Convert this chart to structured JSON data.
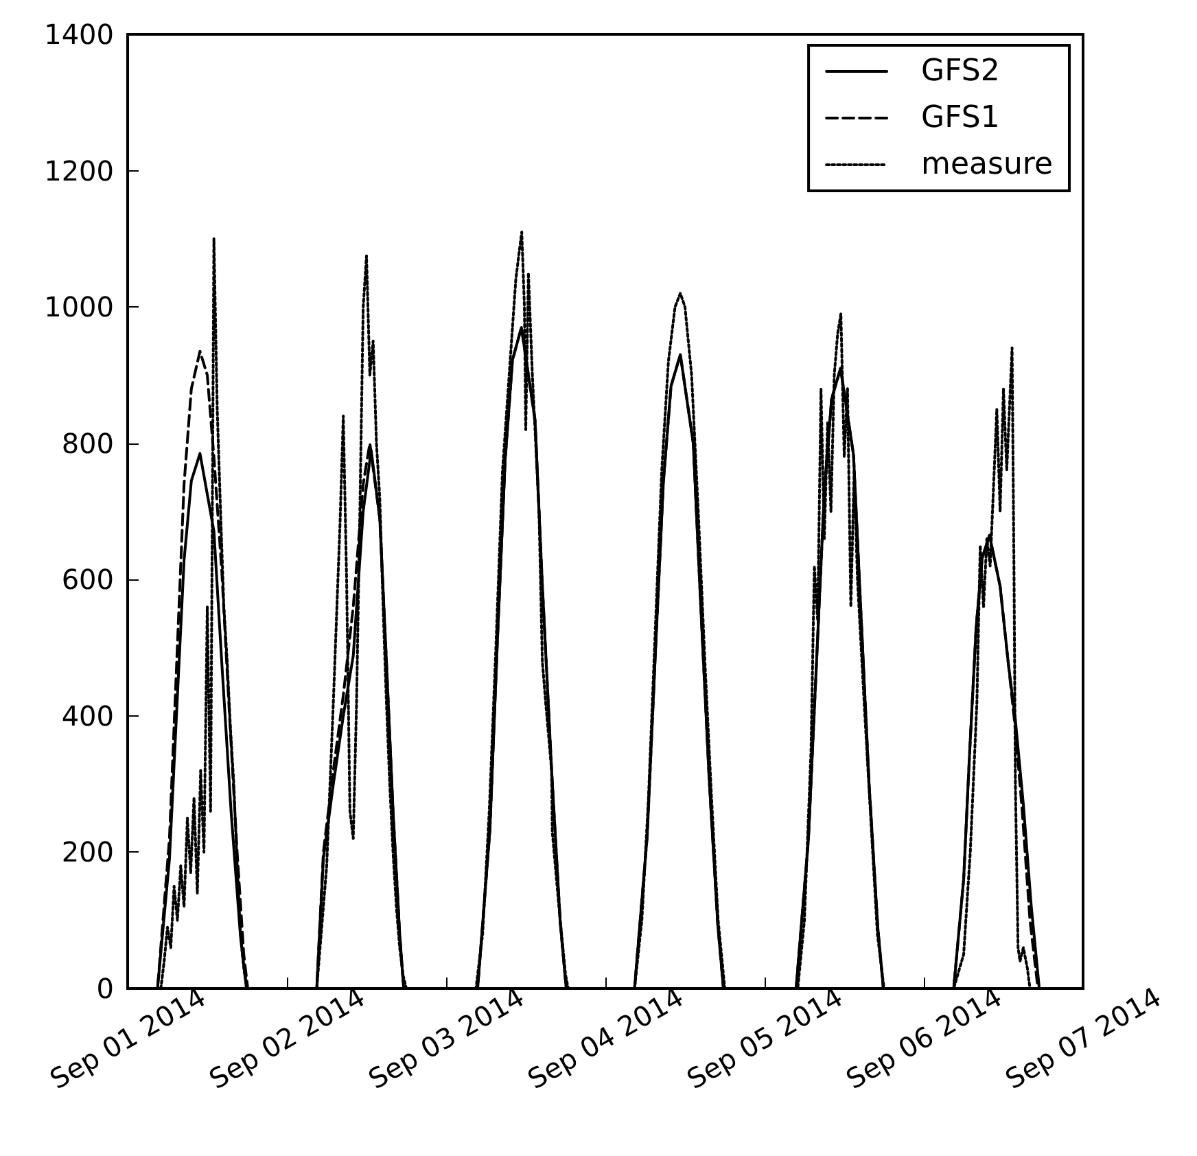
{
  "chart_data": {
    "type": "line",
    "xlim": [
      "2014-09-01",
      "2014-09-07"
    ],
    "xticks": [
      {
        "value": "2014-09-01",
        "label": "Sep 01 2014"
      },
      {
        "value": "2014-09-02",
        "label": "Sep 02 2014"
      },
      {
        "value": "2014-09-03",
        "label": "Sep 03 2014"
      },
      {
        "value": "2014-09-04",
        "label": "Sep 04 2014"
      },
      {
        "value": "2014-09-05",
        "label": "Sep 05 2014"
      },
      {
        "value": "2014-09-06",
        "label": "Sep 06 2014"
      },
      {
        "value": "2014-09-07",
        "label": "Sep 07 2014"
      }
    ],
    "ylim": [
      0,
      1400
    ],
    "yticks": [
      0,
      200,
      400,
      600,
      800,
      1000,
      1200,
      1400
    ],
    "grid": false,
    "legend": "top right",
    "marker": "none",
    "series": [
      {
        "name": "GFS2",
        "color": "#000000",
        "line_style": "solid",
        "x": [
          "2014-09-01T00:00",
          "2014-09-01T04:30",
          "2014-09-01T06:18",
          "2014-09-01T07:24",
          "2014-09-01T08:30",
          "2014-09-01T09:36",
          "2014-09-01T10:54",
          "2014-09-01T13:00",
          "2014-09-01T14:12",
          "2014-09-01T15:36",
          "2014-09-01T17:00",
          "2014-09-01T17:54",
          "2014-09-02T04:30",
          "2014-09-02T05:30",
          "2014-09-02T07:00",
          "2014-09-02T08:30",
          "2014-09-02T10:00",
          "2014-09-02T11:30",
          "2014-09-02T12:42",
          "2014-09-02T14:00",
          "2014-09-02T15:00",
          "2014-09-02T16:00",
          "2014-09-02T17:00",
          "2014-09-02T17:36",
          "2014-09-03T04:45",
          "2014-09-03T06:36",
          "2014-09-03T07:42",
          "2014-09-03T08:54",
          "2014-09-03T10:00",
          "2014-09-03T11:21",
          "2014-09-03T13:24",
          "2014-09-03T14:30",
          "2014-09-03T15:54",
          "2014-09-03T17:12",
          "2014-09-03T18:06",
          "2014-09-04T04:24",
          "2014-09-04T06:18",
          "2014-09-04T07:30",
          "2014-09-04T08:45",
          "2014-09-04T09:54",
          "2014-09-04T11:18",
          "2014-09-04T13:15",
          "2014-09-04T14:21",
          "2014-09-04T15:39",
          "2014-09-04T16:57",
          "2014-09-04T17:48",
          "2014-09-05T04:45",
          "2014-09-05T06:36",
          "2014-09-05T07:48",
          "2014-09-05T09:00",
          "2014-09-05T10:06",
          "2014-09-05T11:27",
          "2014-09-05T13:24",
          "2014-09-05T14:30",
          "2014-09-05T15:45",
          "2014-09-05T17:03",
          "2014-09-05T17:54",
          "2014-09-06T04:30",
          "2014-09-06T06:00",
          "2014-09-06T06:54",
          "2014-09-06T07:54",
          "2014-09-06T08:48",
          "2014-09-06T09:54",
          "2014-09-06T11:30",
          "2014-09-06T12:42",
          "2014-09-06T13:48",
          "2014-09-06T15:00",
          "2014-09-06T16:12",
          "2014-09-06T17:24",
          "2014-09-07T00:00"
        ],
        "values": [
          0,
          0,
          190,
          409,
          628,
          745,
          785,
          671,
          476,
          258,
          77,
          0,
          0,
          191,
          300,
          400,
          488,
          700,
          790,
          690,
          480,
          260,
          80,
          0,
          0,
          233,
          504,
          776,
          922,
          970,
          834,
          592,
          320,
          97,
          0,
          0,
          223,
          484,
          744,
          884,
          930,
          800,
          567,
          307,
          93,
          0,
          0,
          218,
          473,
          728,
          865,
          910,
          783,
          555,
          300,
          91,
          0,
          0,
          160,
          346,
          532,
          632,
          665,
          590,
          480,
          394,
          270,
          120,
          0,
          0
        ]
      },
      {
        "name": "GFS1",
        "color": "#000000",
        "line_style": "dashed",
        "x": [
          "2014-09-01T00:00",
          "2014-09-01T04:30",
          "2014-09-01T06:18",
          "2014-09-01T07:24",
          "2014-09-01T08:30",
          "2014-09-01T09:36",
          "2014-09-01T10:54",
          "2014-09-01T12:00",
          "2014-09-01T13:00",
          "2014-09-01T14:12",
          "2014-09-01T15:18",
          "2014-09-01T16:30",
          "2014-09-01T17:30",
          "2014-09-01T18:06",
          "2014-09-02T04:30",
          "2014-09-02T05:30",
          "2014-09-02T07:00",
          "2014-09-02T08:30",
          "2014-09-02T10:00",
          "2014-09-02T11:30",
          "2014-09-02T12:30",
          "2014-09-02T14:00",
          "2014-09-02T15:00",
          "2014-09-02T16:00",
          "2014-09-02T17:00",
          "2014-09-02T17:36",
          "2014-09-03T04:45",
          "2014-09-03T06:36",
          "2014-09-03T07:42",
          "2014-09-03T08:54",
          "2014-09-03T10:00",
          "2014-09-03T11:21",
          "2014-09-03T13:24",
          "2014-09-03T14:30",
          "2014-09-03T15:54",
          "2014-09-03T17:12",
          "2014-09-03T18:06",
          "2014-09-04T04:24",
          "2014-09-04T06:18",
          "2014-09-04T07:30",
          "2014-09-04T08:45",
          "2014-09-04T09:54",
          "2014-09-04T11:18",
          "2014-09-04T13:15",
          "2014-09-04T14:21",
          "2014-09-04T15:39",
          "2014-09-04T16:57",
          "2014-09-04T17:48",
          "2014-09-05T04:45",
          "2014-09-05T06:36",
          "2014-09-05T07:48",
          "2014-09-05T09:00",
          "2014-09-05T10:06",
          "2014-09-05T11:27",
          "2014-09-05T13:24",
          "2014-09-05T14:30",
          "2014-09-05T15:45",
          "2014-09-05T17:03",
          "2014-09-05T17:54",
          "2014-09-06T04:30",
          "2014-09-06T06:00",
          "2014-09-06T06:54",
          "2014-09-06T07:54",
          "2014-09-06T08:48",
          "2014-09-06T09:54",
          "2014-09-06T11:30",
          "2014-09-06T12:42",
          "2014-09-06T13:48",
          "2014-09-06T14:48",
          "2014-09-06T16:00",
          "2014-09-06T17:12",
          "2014-09-07T00:00"
        ],
        "values": [
          0,
          0,
          220,
          480,
          740,
          880,
          935,
          900,
          780,
          610,
          410,
          200,
          50,
          0,
          0,
          200,
          320,
          430,
          560,
          740,
          800,
          690,
          480,
          260,
          80,
          0,
          0,
          233,
          504,
          776,
          922,
          970,
          834,
          592,
          320,
          97,
          0,
          0,
          223,
          484,
          744,
          884,
          930,
          800,
          567,
          307,
          93,
          0,
          0,
          218,
          473,
          728,
          865,
          910,
          783,
          555,
          300,
          91,
          0,
          0,
          160,
          346,
          532,
          632,
          665,
          590,
          480,
          380,
          264,
          100,
          0,
          0
        ]
      },
      {
        "name": "measure",
        "color": "#000000",
        "line_style": "dotted",
        "x": [
          "2014-09-01T00:00",
          "2014-09-01T05:00",
          "2014-09-01T05:30",
          "2014-09-01T06:00",
          "2014-09-01T06:30",
          "2014-09-01T07:00",
          "2014-09-01T07:30",
          "2014-09-01T08:00",
          "2014-09-01T08:30",
          "2014-09-01T09:00",
          "2014-09-01T09:30",
          "2014-09-01T10:00",
          "2014-09-01T10:30",
          "2014-09-01T11:00",
          "2014-09-01T11:30",
          "2014-09-01T12:00",
          "2014-09-01T12:30",
          "2014-09-01T13:00",
          "2014-09-01T13:30",
          "2014-09-01T14:00",
          "2014-09-01T14:30",
          "2014-09-01T15:00",
          "2014-09-01T15:30",
          "2014-09-01T16:00",
          "2014-09-01T16:30",
          "2014-09-01T17:00",
          "2014-09-01T17:30",
          "2014-09-01T18:00",
          "2014-09-02T04:30",
          "2014-09-02T05:00",
          "2014-09-02T05:30",
          "2014-09-02T06:00",
          "2014-09-02T06:30",
          "2014-09-02T07:00",
          "2014-09-02T07:30",
          "2014-09-02T08:00",
          "2014-09-02T08:30",
          "2014-09-02T09:00",
          "2014-09-02T09:30",
          "2014-09-02T10:00",
          "2014-09-02T10:30",
          "2014-09-02T11:00",
          "2014-09-02T11:30",
          "2014-09-02T12:00",
          "2014-09-02T12:30",
          "2014-09-02T13:00",
          "2014-09-02T13:30",
          "2014-09-02T14:00",
          "2014-09-02T14:30",
          "2014-09-02T15:00",
          "2014-09-02T15:30",
          "2014-09-02T16:00",
          "2014-09-02T16:30",
          "2014-09-02T17:00",
          "2014-09-02T17:30",
          "2014-09-02T18:00",
          "2014-09-03T04:30",
          "2014-09-03T05:30",
          "2014-09-03T06:30",
          "2014-09-03T07:30",
          "2014-09-03T08:30",
          "2014-09-03T09:30",
          "2014-09-03T10:30",
          "2014-09-03T11:00",
          "2014-09-03T11:24",
          "2014-09-03T11:48",
          "2014-09-03T12:00",
          "2014-09-03T12:24",
          "2014-09-03T13:00",
          "2014-09-03T14:00",
          "2014-09-03T14:30",
          "2014-09-03T15:00",
          "2014-09-03T15:54",
          "2014-09-03T16:00",
          "2014-09-03T17:00",
          "2014-09-03T18:00",
          "2014-09-03T18:24",
          "2014-09-04T04:24",
          "2014-09-04T05:30",
          "2014-09-04T06:30",
          "2014-09-04T07:30",
          "2014-09-04T08:30",
          "2014-09-04T09:30",
          "2014-09-04T10:30",
          "2014-09-04T11:18",
          "2014-09-04T12:00",
          "2014-09-04T13:00",
          "2014-09-04T14:00",
          "2014-09-04T15:00",
          "2014-09-04T16:00",
          "2014-09-04T17:00",
          "2014-09-04T18:00",
          "2014-09-05T05:00",
          "2014-09-05T06:00",
          "2014-09-05T07:00",
          "2014-09-05T07:30",
          "2014-09-05T08:00",
          "2014-09-05T08:30",
          "2014-09-05T09:00",
          "2014-09-05T09:30",
          "2014-09-05T10:00",
          "2014-09-05T10:30",
          "2014-09-05T11:00",
          "2014-09-05T11:30",
          "2014-09-05T12:00",
          "2014-09-05T12:30",
          "2014-09-05T13:00",
          "2014-09-05T13:30",
          "2014-09-05T14:00",
          "2014-09-05T15:00",
          "2014-09-05T16:00",
          "2014-09-05T17:00",
          "2014-09-05T18:00",
          "2014-09-06T04:30",
          "2014-09-06T06:00",
          "2014-09-06T07:00",
          "2014-09-06T08:00",
          "2014-09-06T08:30",
          "2014-09-06T09:00",
          "2014-09-06T09:30",
          "2014-09-06T10:00",
          "2014-09-06T11:00",
          "2014-09-06T11:30",
          "2014-09-06T12:00",
          "2014-09-06T12:30",
          "2014-09-06T13:18",
          "2014-09-06T13:36",
          "2014-09-06T13:48",
          "2014-09-06T14:12",
          "2014-09-06T14:30",
          "2014-09-06T15:00",
          "2014-09-06T15:36",
          "2014-09-06T16:00",
          "2014-09-07T00:00"
        ],
        "values": [
          0,
          0,
          40,
          90,
          60,
          150,
          100,
          180,
          120,
          250,
          170,
          280,
          140,
          320,
          200,
          560,
          260,
          1100,
          850,
          700,
          560,
          480,
          380,
          300,
          180,
          80,
          30,
          0,
          0,
          60,
          120,
          180,
          300,
          420,
          550,
          680,
          840,
          600,
          260,
          220,
          420,
          700,
          1000,
          1075,
          900,
          950,
          800,
          720,
          560,
          420,
          300,
          200,
          120,
          60,
          20,
          0,
          0,
          80,
          260,
          500,
          760,
          900,
          1040,
          1080,
          1110,
          1000,
          820,
          1050,
          900,
          700,
          480,
          420,
          320,
          230,
          120,
          20,
          0,
          0,
          100,
          280,
          520,
          760,
          920,
          1000,
          1020,
          1000,
          900,
          700,
          480,
          280,
          100,
          0,
          0,
          100,
          350,
          620,
          540,
          880,
          660,
          830,
          700,
          900,
          960,
          990,
          780,
          880,
          560,
          760,
          600,
          420,
          250,
          80,
          0,
          0,
          50,
          200,
          420,
          650,
          560,
          660,
          620,
          850,
          700,
          880,
          760,
          940,
          600,
          300,
          60,
          40,
          60,
          30,
          0,
          0
        ]
      }
    ]
  }
}
